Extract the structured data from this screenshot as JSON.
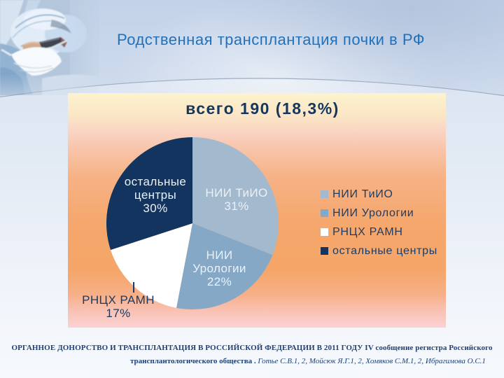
{
  "slide": {
    "title": "Родственная трансплантация почки в РФ",
    "subtitle": "всего 190 (18,3%)",
    "footer_line1": "ОРГАННОЕ ДОНОРСТВО И ТРАНСПЛАНТАЦИЯ В РОССИЙСКОЙ ФЕДЕРАЦИИ В 2011 ГОДУ IV сообщение регистра Российского",
    "footer_line2_bold": "трансплантологического общества . ",
    "footer_line2_italic": "Готье С.В.1, 2, Мойсюк Я.Г.1, 2, Хомяков С.М.1, 2, Ибрагимова О.С.1"
  },
  "chart_data": {
    "type": "pie",
    "title": "всего 190 (18,3%)",
    "total_label": "всего 190 (18,3%)",
    "direction": "clockwise",
    "start_angle_deg": 0,
    "legend_position": "right",
    "segments": [
      {
        "label": "НИИ ТиИО",
        "value": 31,
        "color": "#a2b9ce",
        "label_position": "inside"
      },
      {
        "label": "НИИ Урологии",
        "value": 22,
        "color": "#84a8c6",
        "label_position": "inside"
      },
      {
        "label": "РНЦХ РАМН",
        "value": 17,
        "color": "#ffffff",
        "label_position": "outside"
      },
      {
        "label": "остальные центры",
        "value": 30,
        "color": "#12345e",
        "label_position": "inside"
      }
    ]
  },
  "colors": {
    "title": "#2171bb",
    "subtitle": "#16365e",
    "panel_top": "#fdf3cd",
    "panel_mid": "#f5a76d",
    "panel_bottom": "#fbd2d3",
    "legend_text": "#1e3c66",
    "footer_text": "#1e4078",
    "background": "#ccd9ec"
  }
}
